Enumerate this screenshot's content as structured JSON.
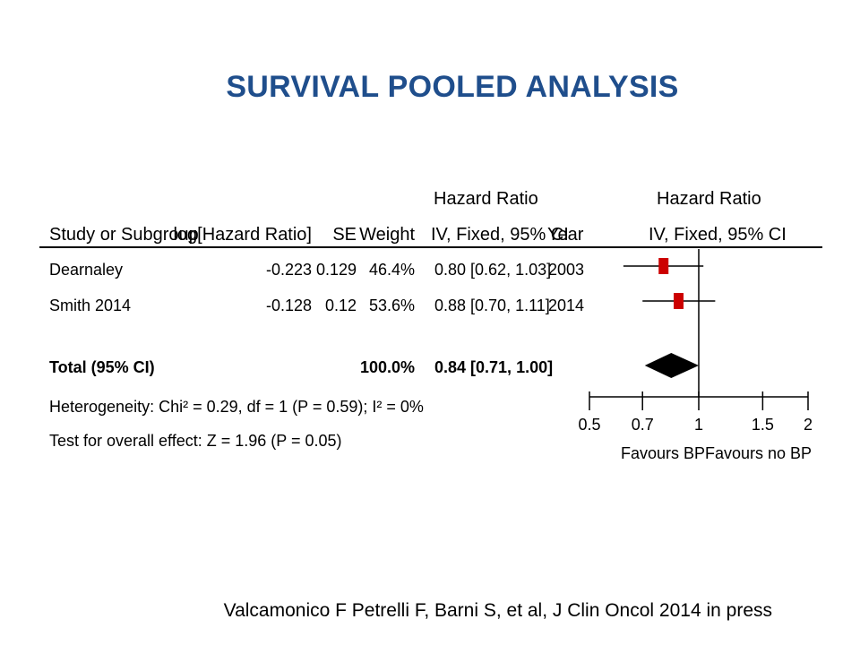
{
  "title": "SURVIVAL POOLED ANALYSIS",
  "table": {
    "header_group_left": "Hazard Ratio",
    "header_group_right": "Hazard Ratio",
    "columns": [
      "Study or Subgroup",
      "log[Hazard Ratio]",
      "SE",
      "Weight",
      "IV, Fixed, 95% CI",
      "Year",
      "IV, Fixed, 95% CI"
    ],
    "rows": [
      {
        "study": "Dearnaley",
        "log_hr": "-0.223",
        "se": "0.129",
        "weight": "46.4%",
        "ci": "0.80 [0.62, 1.03]",
        "year": "2003"
      },
      {
        "study": "Smith 2014",
        "log_hr": "-0.128",
        "se": "0.12",
        "weight": "53.6%",
        "ci": "0.88 [0.70, 1.11]",
        "year": "2014"
      }
    ],
    "total": {
      "label": "Total (95% CI)",
      "weight": "100.0%",
      "ci": "0.84 [0.71, 1.00]"
    },
    "heterogeneity": "Heterogeneity: Chi² = 0.29, df = 1 (P = 0.59); I² = 0%",
    "overall_effect": "Test for overall effect: Z = 1.96 (P = 0.05)"
  },
  "chart_data": {
    "type": "forest",
    "x_scale": "log",
    "xlim": [
      0.5,
      2
    ],
    "null_line": 1,
    "x_ticks": [
      0.5,
      0.7,
      1,
      1.5,
      2
    ],
    "x_tick_labels": [
      "0.5",
      "0.7",
      "1",
      "1.5",
      "2"
    ],
    "favours_left": "Favours BP",
    "favours_right": "Favours no BP",
    "studies": [
      {
        "name": "Dearnaley",
        "hr": 0.8,
        "lower": 0.62,
        "upper": 1.03,
        "weight": 46.4
      },
      {
        "name": "Smith 2014",
        "hr": 0.88,
        "lower": 0.7,
        "upper": 1.11,
        "weight": 53.6
      }
    ],
    "pooled": {
      "hr": 0.84,
      "lower": 0.71,
      "upper": 1.0
    },
    "colors": {
      "study_marker": "#cc0000",
      "pooled_marker": "#000000",
      "lines": "#000000"
    }
  },
  "citation": "Valcamonico F Petrelli F, Barni S, et al, J Clin Oncol 2014 in press"
}
